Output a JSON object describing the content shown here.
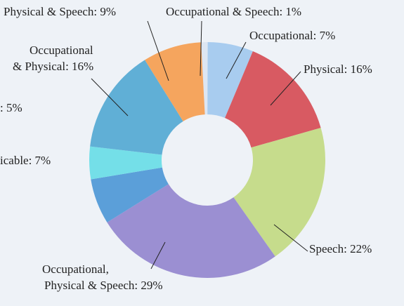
{
  "chart_data": {
    "type": "donut",
    "labels": [
      [
        "Occupational & Speech: 1%"
      ],
      [
        "Occupational: 7%"
      ],
      [
        "Physical: 16%"
      ],
      [
        "Speech: 22%"
      ],
      [
        "Occupational,",
        "Physical & Speech: 29%"
      ],
      [
        "icable: 7%"
      ],
      [
        ": 5%"
      ],
      [
        "Occupational",
        "& Physical: 16%"
      ],
      [
        "Physical & Speech: 9%"
      ]
    ],
    "values": [
      1,
      7,
      16,
      22,
      29,
      7,
      5,
      16,
      9
    ],
    "colors": [
      "#dde6f2",
      "#a8ccef",
      "#d85a62",
      "#c6dc8c",
      "#9b8fd2",
      "#5b9fd9",
      "#74dfe8",
      "#60afd6",
      "#f5a55e"
    ]
  }
}
